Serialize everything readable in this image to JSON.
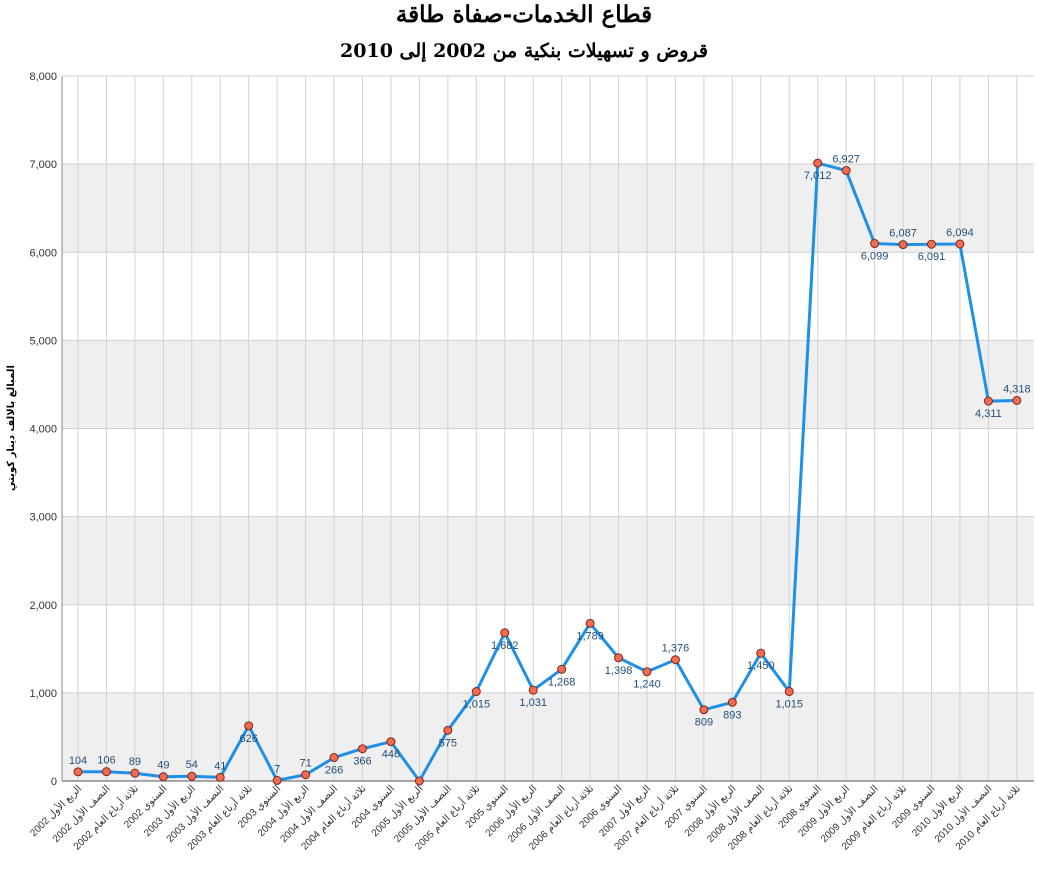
{
  "chart_data": {
    "type": "line",
    "title": "قطاع الخدمات-صفاة طاقة",
    "subtitle": "قروض و تسهيلات بنكية من 2002 إلى 2010",
    "ylabel": "المبالغ بالالف دينار كويتي",
    "xlabel": "",
    "ylim": [
      0,
      8000
    ],
    "yticks": [
      "0",
      "1,000",
      "2,000",
      "3,000",
      "4,000",
      "5,000",
      "6,000",
      "7,000",
      "8,000"
    ],
    "grid": true,
    "colors": {
      "line": "#1e90e8",
      "marker_fill": "#f26b50",
      "marker_stroke": "#7a2a1a",
      "band": "#efefef",
      "label": "#1f4e79"
    },
    "categories": [
      "الربع الأول 2002",
      "النصف الأول 2002",
      "ثلاثة أرباع العام 2002",
      "السنوي 2002",
      "الربع الأول 2003",
      "النصف الأول 2003",
      "ثلاثة أرباع العام 2003",
      "السنوي 2003",
      "الربع الأول 2004",
      "النصف الأول 2004",
      "ثلاثة أرباع العام 2004",
      "السنوي 2004",
      "الربع الأول 2005",
      "النصف الأول 2005",
      "ثلاثة أرباع العام 2005",
      "السنوي 2005",
      "الربع الأول 2006",
      "النصف الأول 2006",
      "ثلاثة أرباع العام 2006",
      "السنوي 2006",
      "الربع الأول 2007",
      "ثلاثة أرباع العام 2007",
      "السنوي 2007",
      "الربع الأول 2008",
      "النصف الأول 2008",
      "ثلاثة أرباع العام 2008",
      "السنوي 2008",
      "الربع الأول 2009",
      "النصف الأول 2009",
      "ثلاثة أرباع العام 2009",
      "السنوي 2009",
      "الربع الأول 2010",
      "النصف الأول 2010",
      "ثلاثة أرباع العام 2010"
    ],
    "values": [
      104,
      106,
      89,
      49,
      54,
      41,
      626,
      7,
      71,
      266,
      366,
      446,
      0,
      575,
      1015,
      1682,
      1031,
      1268,
      1789,
      1398,
      1240,
      1376,
      809,
      893,
      1450,
      1015,
      7012,
      6927,
      6099,
      6087,
      6091,
      6094,
      4311,
      4318
    ],
    "labels": [
      "104",
      "106",
      "89",
      "49",
      "54",
      "41",
      "626",
      "7",
      "71",
      "266",
      "366",
      "446",
      "",
      "575",
      "1,015",
      "1,682",
      "1,031",
      "1,268",
      "1,789",
      "1,398",
      "1,240",
      "1,376",
      "809",
      "893",
      "1,450",
      "1,015",
      "7,012",
      "6,927",
      "6,099",
      "6,087",
      "6,091",
      "6,094",
      "4,311",
      "4,318"
    ],
    "label_pos": [
      "above",
      "above",
      "above",
      "above",
      "above",
      "above",
      "below",
      "above",
      "above",
      "below",
      "below",
      "below",
      "none",
      "below",
      "below",
      "below",
      "below",
      "below",
      "below",
      "below",
      "below",
      "above",
      "below",
      "below",
      "below",
      "below",
      "below",
      "above",
      "below",
      "above",
      "below",
      "above",
      "below",
      "above"
    ]
  }
}
